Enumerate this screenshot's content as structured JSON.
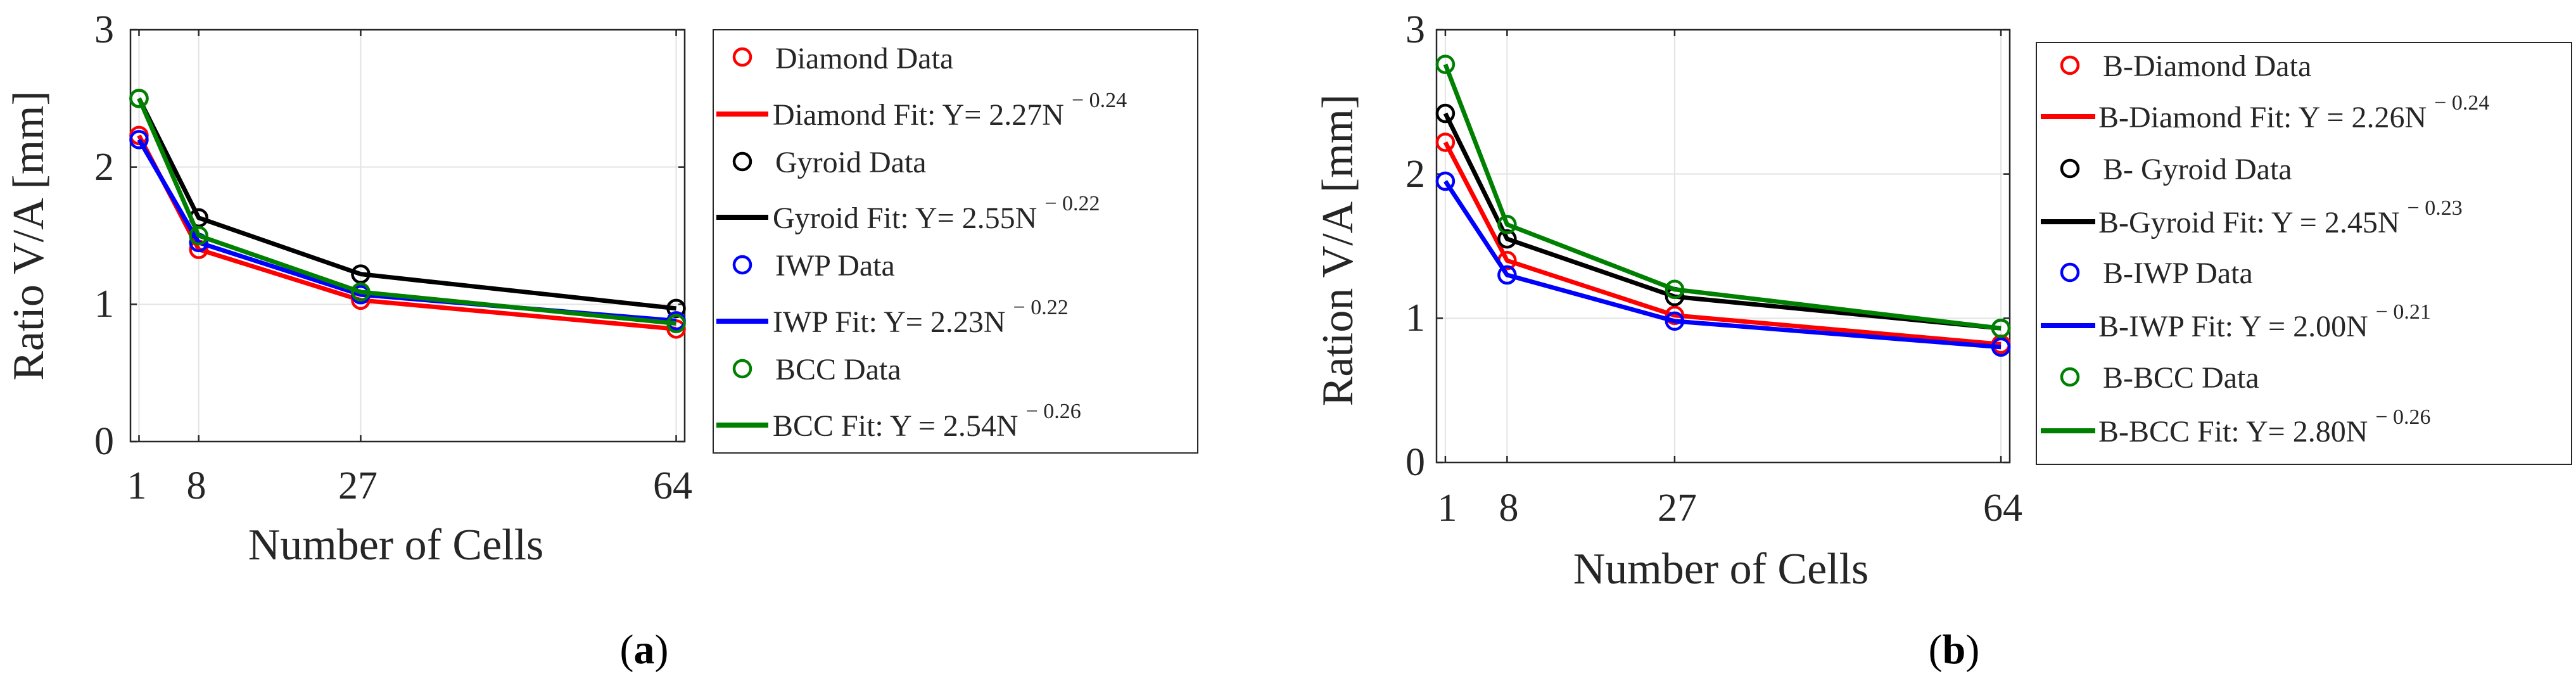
{
  "chart_data": [
    {
      "type": "line",
      "panel_label": "(a)",
      "xlabel": "Number of Cells",
      "ylabel": "Ratio V/A [mm]",
      "x_ticks": [
        "1",
        "8",
        "27",
        "64"
      ],
      "y_ticks": [
        "0",
        "1",
        "2",
        "3"
      ],
      "xlim": [
        0,
        65
      ],
      "ylim": [
        0,
        3
      ],
      "x": [
        1,
        8,
        27,
        64
      ],
      "grid": true,
      "legend_position": "outside-right",
      "series": [
        {
          "name": "Diamond",
          "color": "#ff0000",
          "data_label": "Diamond Data",
          "fit_label": "Diamond Fit: Y= 2.27N",
          "fit_exponent": "− 0.24",
          "values": [
            2.23,
            1.4,
            1.03,
            0.82
          ]
        },
        {
          "name": "Gyroid",
          "color": "#000000",
          "data_label": "Gyroid Data",
          "fit_label": "Gyroid Fit: Y= 2.55N",
          "fit_exponent": "− 0.22",
          "values": [
            2.5,
            1.63,
            1.22,
            0.97
          ]
        },
        {
          "name": "IWP",
          "color": "#0000ff",
          "data_label": "IWP Data",
          "fit_label": "IWP Fit: Y= 2.23N",
          "fit_exponent": "− 0.22",
          "values": [
            2.2,
            1.45,
            1.07,
            0.88
          ]
        },
        {
          "name": "BCC",
          "color": "#008000",
          "data_label": "BCC Data",
          "fit_label": "BCC Fit: Y = 2.54N",
          "fit_exponent": "− 0.26",
          "values": [
            2.5,
            1.5,
            1.09,
            0.86
          ]
        }
      ]
    },
    {
      "type": "line",
      "panel_label": "(b)",
      "xlabel": "Number of Cells",
      "ylabel": "Ration V/A [mm]",
      "x_ticks": [
        "1",
        "8",
        "27",
        "64"
      ],
      "y_ticks": [
        "0",
        "1",
        "2",
        "3"
      ],
      "xlim": [
        0,
        65
      ],
      "ylim": [
        0,
        3
      ],
      "x": [
        1,
        8,
        27,
        64
      ],
      "grid": true,
      "legend_position": "outside-right",
      "series": [
        {
          "name": "B-Diamond",
          "color": "#ff0000",
          "data_label": "B-Diamond Data",
          "fit_label": "B-Diamond Fit: Y = 2.26N",
          "fit_exponent": "− 0.24",
          "values": [
            2.22,
            1.4,
            1.02,
            0.82
          ]
        },
        {
          "name": "B-Gyroid",
          "color": "#000000",
          "data_label": "B- Gyroid Data",
          "fit_label": "B-Gyroid Fit: Y = 2.45N",
          "fit_exponent": "− 0.23",
          "values": [
            2.42,
            1.55,
            1.15,
            0.93
          ]
        },
        {
          "name": "B-IWP",
          "color": "#0000ff",
          "data_label": "B-IWP Data",
          "fit_label": "B-IWP Fit: Y = 2.00N",
          "fit_exponent": "− 0.21",
          "values": [
            1.95,
            1.3,
            0.98,
            0.8
          ]
        },
        {
          "name": "B-BCC",
          "color": "#008000",
          "data_label": "B-BCC Data",
          "fit_label": "B-BCC Fit: Y= 2.80N",
          "fit_exponent": "− 0.26",
          "values": [
            2.76,
            1.65,
            1.2,
            0.93
          ]
        }
      ]
    }
  ]
}
